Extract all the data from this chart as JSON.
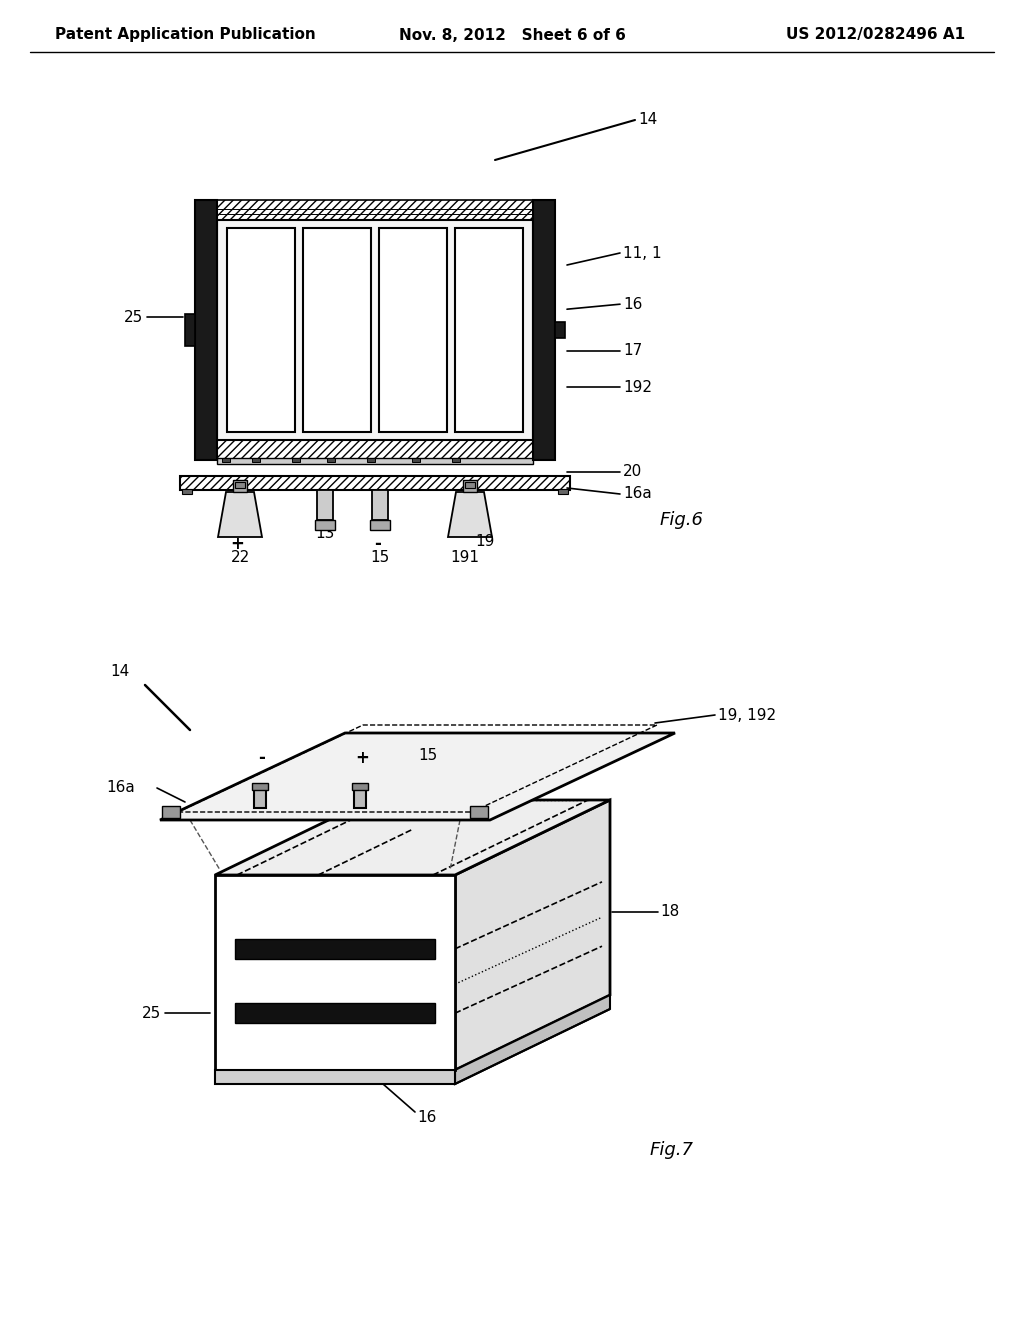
{
  "bg_color": "#ffffff",
  "header": {
    "left": "Patent Application Publication",
    "center": "Nov. 8, 2012   Sheet 6 of 6",
    "right": "US 2012/0282496 A1",
    "fontsize": 11
  },
  "fig6_label": "Fig.6",
  "fig7_label": "Fig.7"
}
